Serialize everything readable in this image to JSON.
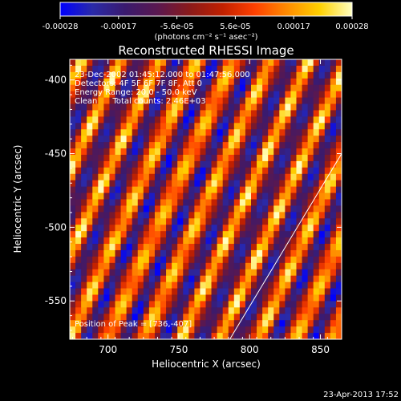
{
  "chart_data": {
    "type": "heatmap",
    "title": "Reconstructed RHESSI Image",
    "xlabel": "Heliocentric X (arcsec)",
    "ylabel": "Heliocentric Y (arcsec)",
    "xlim": [
      673,
      865
    ],
    "ylim": [
      -576,
      -386
    ],
    "x_ticks": [
      700,
      750,
      800,
      850
    ],
    "y_ticks": [
      -400,
      -450,
      -500,
      -550
    ],
    "colorbar": {
      "range": [
        -0.00028,
        0.00028
      ],
      "ticks": [
        "-0.00028",
        "-0.00017",
        "-5.6e-05",
        "5.6e-05",
        "0.00017",
        "0.00028"
      ],
      "unit_label": "(photons cm⁻² s⁻¹ asec⁻²)",
      "colormap": [
        "#0000ff",
        "#2a2aa8",
        "#3a1a6e",
        "#5a1850",
        "#8a1a1a",
        "#c02000",
        "#ff4000",
        "#ff8c00",
        "#ffd000",
        "#ffffc0"
      ]
    },
    "annotations": [
      "23-Dec-2002 01:45:12.000 to 01:47:56.000",
      "Detectors: 4F 5F 6F 7F 8F, Att 0",
      "Energy Range: 20.0 - 50.0 keV",
      "Clean      Total counts: 2.46E+03"
    ],
    "peak_label": "Position of Peak = [736,-407]",
    "limb_line": [
      [
        786,
        -576
      ],
      [
        865,
        -450
      ]
    ],
    "pattern": {
      "grid_cols": 48,
      "grid_rows": 44
    }
  },
  "footer": {
    "timestamp": "23-Apr-2013 17:52"
  }
}
